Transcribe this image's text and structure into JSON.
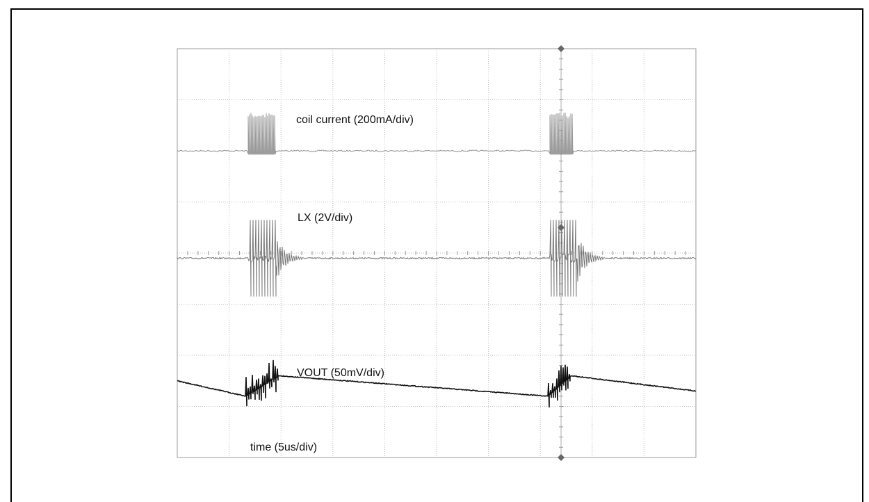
{
  "chart_data": {
    "type": "line",
    "title": "",
    "x_unit": "us",
    "x_range": [
      0,
      50
    ],
    "grid": true,
    "x_divisions": 10,
    "y_divisions": 8,
    "trigger_marker_x_us": 37.0,
    "channel_labels": [
      {
        "text": "coil current  (200mA/div)",
        "id": "coil"
      },
      {
        "text": "LX (2V/div)",
        "id": "lx"
      },
      {
        "text": "VOUT (50mV/div)",
        "id": "vout"
      },
      {
        "text": "time (5us/div)",
        "id": "time"
      }
    ],
    "series": [
      {
        "name": "coil current",
        "scale": "200mA/div",
        "baseline_div": 2.0,
        "burst_start_us": [
          6.8,
          35.8
        ],
        "burst_end_us": [
          9.5,
          38.2
        ],
        "peak_div": 0.75,
        "color": "#9a9a9a"
      },
      {
        "name": "LX",
        "scale": "2V/div",
        "baseline_div": 4.1,
        "burst_start_us": [
          6.8,
          35.8
        ],
        "burst_end_us": [
          9.5,
          38.6
        ],
        "swing_div": [
          -0.75,
          0.75
        ],
        "color": "#777777"
      },
      {
        "name": "VOUT",
        "scale": "50mV/div",
        "points_us_div": [
          [
            0,
            6.5
          ],
          [
            6.6,
            6.8
          ],
          [
            9.8,
            6.4
          ],
          [
            35.7,
            6.8
          ],
          [
            38.0,
            6.4
          ],
          [
            50,
            6.7
          ]
        ],
        "color": "#111111"
      }
    ]
  }
}
